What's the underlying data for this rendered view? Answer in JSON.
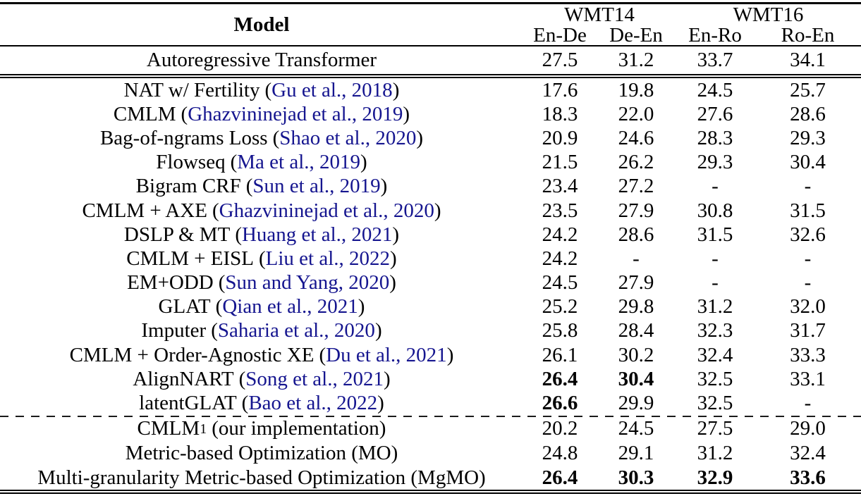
{
  "table": {
    "header": {
      "model_label": "Model",
      "group1": "WMT14",
      "group2": "WMT16",
      "subcolumns": [
        "En-De",
        "De-En",
        "En-Ro",
        "Ro-En"
      ]
    },
    "citation_format": {
      "open": "(",
      "close": ")"
    },
    "colors": {
      "citation_color": "#15158F",
      "text_color": "#000000"
    },
    "baseline_rows": [
      {
        "name": "Autoregressive Transformer",
        "values": [
          "27.5",
          "31.2",
          "33.7",
          "34.1"
        ]
      }
    ],
    "prior_rows": [
      {
        "name": "NAT w/ Fertility",
        "cite": "Gu et al., 2018",
        "values": [
          "17.6",
          "19.8",
          "24.5",
          "25.7"
        ]
      },
      {
        "name": "CMLM",
        "cite": "Ghazvininejad et al., 2019",
        "values": [
          "18.3",
          "22.0",
          "27.6",
          "28.6"
        ]
      },
      {
        "name": "Bag-of-ngrams Loss",
        "cite": "Shao et al., 2020",
        "values": [
          "20.9",
          "24.6",
          "28.3",
          "29.3"
        ]
      },
      {
        "name": "Flowseq",
        "cite": "Ma et al., 2019",
        "values": [
          "21.5",
          "26.2",
          "29.3",
          "30.4"
        ]
      },
      {
        "name": "Bigram CRF",
        "cite": "Sun et al., 2019",
        "values": [
          "23.4",
          "27.2",
          "-",
          "-"
        ]
      },
      {
        "name": "CMLM + AXE",
        "cite": "Ghazvininejad et al., 2020",
        "values": [
          "23.5",
          "27.9",
          "30.8",
          "31.5"
        ]
      },
      {
        "name": "DSLP & MT",
        "cite": "Huang et al., 2021",
        "values": [
          "24.2",
          "28.6",
          "31.5",
          "32.6"
        ]
      },
      {
        "name": "CMLM + EISL",
        "cite": "Liu et al., 2022",
        "values": [
          "24.2",
          "-",
          "-",
          "-"
        ]
      },
      {
        "name": "EM+ODD",
        "cite": "Sun and Yang, 2020",
        "values": [
          "24.5",
          "27.9",
          "-",
          "-"
        ]
      },
      {
        "name": "GLAT",
        "cite": "Qian et al., 2021",
        "values": [
          "25.2",
          "29.8",
          "31.2",
          "32.0"
        ]
      },
      {
        "name": "Imputer",
        "cite": "Saharia et al., 2020",
        "values": [
          "25.8",
          "28.4",
          "32.3",
          "31.7"
        ]
      },
      {
        "name": "CMLM + Order-Agnostic XE",
        "cite": "Du et al., 2021",
        "values": [
          "26.1",
          "30.2",
          "32.4",
          "33.3"
        ]
      },
      {
        "name": "AlignNART",
        "cite": "Song et al., 2021",
        "values": [
          "26.4",
          "30.4",
          "32.5",
          "33.1"
        ],
        "bold": [
          true,
          true,
          false,
          false
        ]
      },
      {
        "name": "latentGLAT",
        "cite": "Bao et al., 2022",
        "values": [
          "26.6",
          "29.9",
          "32.5",
          "-"
        ],
        "bold": [
          true,
          false,
          false,
          false
        ]
      }
    ],
    "our_rows": [
      {
        "name": "CMLM",
        "sub": "1",
        "tail": "(our implementation)",
        "values": [
          "20.2",
          "24.5",
          "27.5",
          "29.0"
        ]
      },
      {
        "name": "Metric-based Optimization (MO)",
        "values": [
          "24.8",
          "29.1",
          "31.2",
          "32.4"
        ]
      },
      {
        "name": "Multi-granularity Metric-based Optimization (MgMO)",
        "values": [
          "26.4",
          "30.3",
          "32.9",
          "33.6"
        ],
        "bold": [
          true,
          true,
          true,
          true
        ]
      }
    ]
  }
}
